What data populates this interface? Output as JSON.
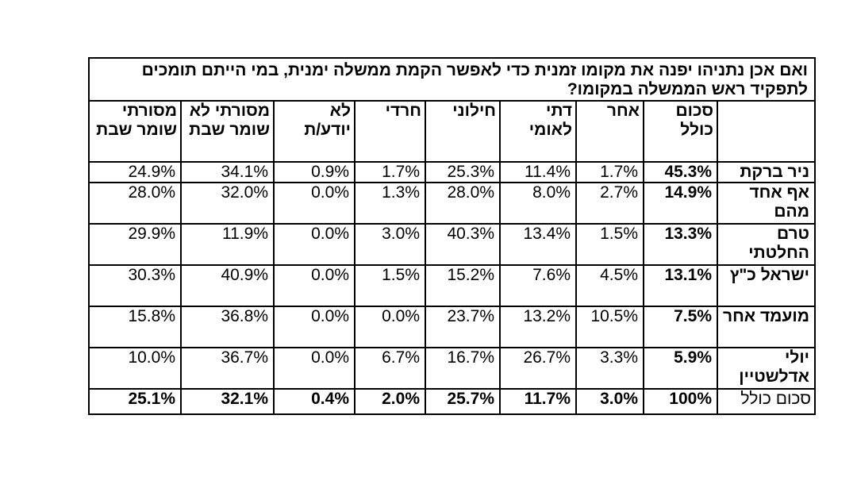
{
  "table": {
    "title": "ואם אכן נתניהו יפנה את מקומו זמנית כדי לאפשר הקמת ממשלה ימנית, במי הייתם תומכים לתפקיד ראש הממשלה במקומו?",
    "headers": [
      "",
      "סכום כולל",
      "אחר",
      "דתי לאומי",
      "חילוני",
      "חרדי",
      "לא יודע/ת",
      "מסורתי לא שומר שבת",
      "מסורתי שומר שבת"
    ],
    "rows": [
      {
        "label": "ניר ברקת",
        "total": "45.3%",
        "cells": [
          "1.7%",
          "11.4%",
          "25.3%",
          "1.7%",
          "0.9%",
          "34.1%",
          "24.9%"
        ]
      },
      {
        "label": "אף אחד מהם",
        "total": "14.9%",
        "cells": [
          "2.7%",
          "8.0%",
          "28.0%",
          "1.3%",
          "0.0%",
          "32.0%",
          "28.0%"
        ]
      },
      {
        "label": "טרם החלטתי",
        "total": "13.3%",
        "cells": [
          "1.5%",
          "13.4%",
          "40.3%",
          "3.0%",
          "0.0%",
          "11.9%",
          "29.9%"
        ]
      },
      {
        "label": "ישראל כ\"ץ",
        "total": "13.1%",
        "cells": [
          "4.5%",
          "7.6%",
          "15.2%",
          "1.5%",
          "0.0%",
          "40.9%",
          "30.3%"
        ]
      },
      {
        "label": "מועמד אחר",
        "total": "7.5%",
        "cells": [
          "10.5%",
          "13.2%",
          "23.7%",
          "0.0%",
          "0.0%",
          "36.8%",
          "15.8%"
        ]
      },
      {
        "label": "יולי אדלשטיין",
        "total": "5.9%",
        "cells": [
          "3.3%",
          "26.7%",
          "16.7%",
          "6.7%",
          "0.0%",
          "36.7%",
          "10.0%"
        ]
      }
    ],
    "total_row": {
      "label": "סכום כולל",
      "total": "100%",
      "cells": [
        "3.0%",
        "11.7%",
        "25.7%",
        "2.0%",
        "0.4%",
        "32.1%",
        "25.1%"
      ]
    }
  }
}
